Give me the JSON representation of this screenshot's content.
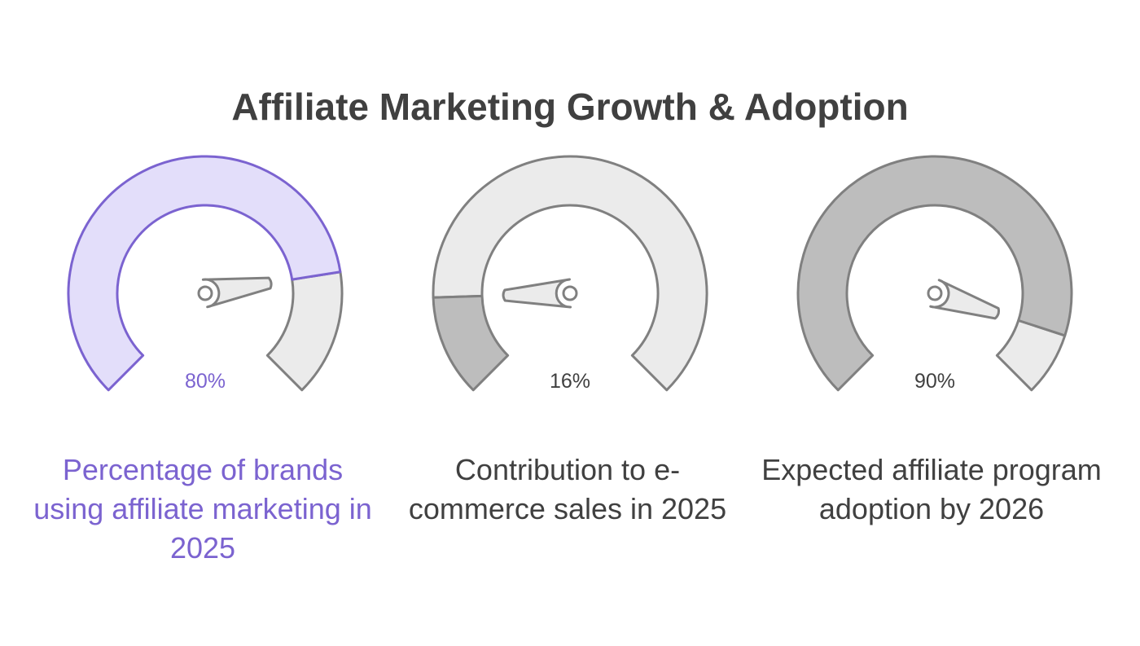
{
  "title": "Affiliate Marketing Growth & Adoption",
  "colors": {
    "accent": "#7b63d0",
    "accent_fill": "#e3defa",
    "track_fill": "#ebebeb",
    "dark_fill": "#bdbdbd",
    "stroke": "#808080",
    "text": "#404040"
  },
  "chart_data": [
    {
      "type": "gauge",
      "value": 80,
      "value_label": "80%",
      "caption": "Percentage of brands using affiliate marketing in 2025",
      "range": [
        0,
        100
      ],
      "filled_color": "#e3defa",
      "remaining_color": "#ebebeb",
      "highlight": true
    },
    {
      "type": "gauge",
      "value": 16,
      "value_label": "16%",
      "caption": "Contribution to e-commerce sales in 2025",
      "range": [
        0,
        100
      ],
      "filled_color": "#bdbdbd",
      "remaining_color": "#ebebeb",
      "highlight": false
    },
    {
      "type": "gauge",
      "value": 90,
      "value_label": "90%",
      "caption": "Expected affiliate program adoption by 2026",
      "range": [
        0,
        100
      ],
      "filled_color": "#bdbdbd",
      "remaining_color": "#ebebeb",
      "highlight": false
    }
  ]
}
